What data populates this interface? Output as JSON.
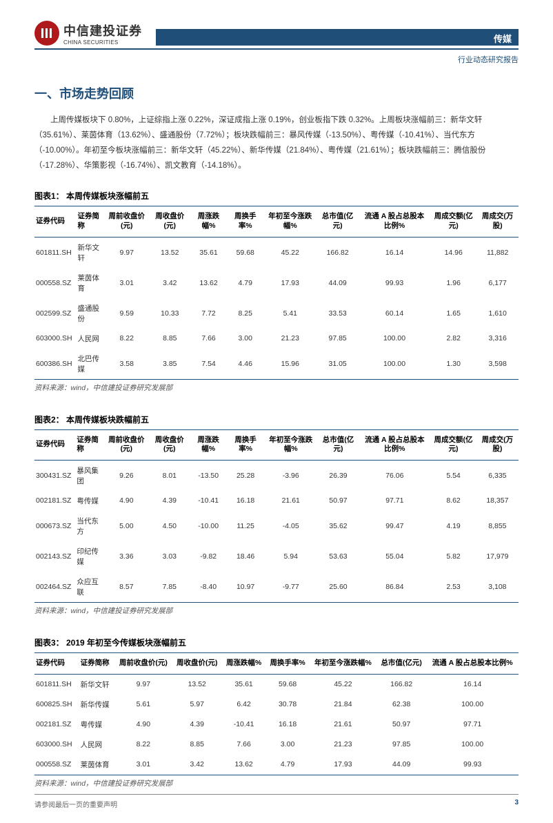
{
  "header": {
    "company_cn": "中信建投证券",
    "company_en": "CHINA SECURITIES",
    "logo_mark": "CITIC",
    "category": "传媒",
    "report_type": "行业动态研究报告"
  },
  "section1": {
    "title": "一、市场走势回顾",
    "intro": "上周传媒板块下 0.80%，上证综指上涨 0.22%，深证成指上涨 0.19%，创业板指下跌 0.32%。上周板块涨幅前三：新华文轩（35.61%）、莱茵体育（13.62%）、盛通股份（7.72%）；板块跌幅前三：暴风传媒（-13.50%）、粤传媒（-10.41%）、当代东方（-10.00%）。年初至今板块涨幅前三：新华文轩（45.22%）、新华传媒（21.84%）、粤传媒（21.61%）；板块跌幅前三：腾信股份（-17.28%）、华策影视（-16.74%）、凯文教育（-14.18%）。"
  },
  "colors": {
    "header_bar": "#1f4e79",
    "accent": "#1f4e79",
    "logo_red": "#b0191b",
    "text": "#333333"
  },
  "table1": {
    "title": "图表1：  本周传媒板块涨幅前五",
    "columns": [
      "证券代码",
      "证券简称",
      "周前收盘价(元)",
      "周收盘价(元)",
      "周涨跌幅%",
      "周换手率%",
      "年初至今涨跌幅%",
      "总市值(亿元)",
      "流通 A 股占总股本比例%",
      "周成交额(亿元)",
      "周成交(万股)"
    ],
    "rows": [
      [
        "601811.SH",
        "新华文轩",
        "9.97",
        "13.52",
        "35.61",
        "59.68",
        "45.22",
        "166.82",
        "16.14",
        "14.96",
        "11,882"
      ],
      [
        "000558.SZ",
        "莱茵体育",
        "3.01",
        "3.42",
        "13.62",
        "4.79",
        "17.93",
        "44.09",
        "99.93",
        "1.96",
        "6,177"
      ],
      [
        "002599.SZ",
        "盛通股份",
        "9.59",
        "10.33",
        "7.72",
        "8.25",
        "5.41",
        "33.53",
        "60.14",
        "1.65",
        "1,610"
      ],
      [
        "603000.SH",
        "人民网",
        "8.22",
        "8.85",
        "7.66",
        "3.00",
        "21.23",
        "97.85",
        "100.00",
        "2.82",
        "3,316"
      ],
      [
        "600386.SH",
        "北巴传媒",
        "3.58",
        "3.85",
        "7.54",
        "4.46",
        "15.96",
        "31.05",
        "100.00",
        "1.30",
        "3,598"
      ]
    ],
    "source": "资料来源：wind，中信建投证券研究发展部"
  },
  "table2": {
    "title": "图表2：  本周传媒板块跌幅前五",
    "columns": [
      "证券代码",
      "证券简称",
      "周前收盘价(元)",
      "周收盘价(元)",
      "周涨跌幅%",
      "周换手率%",
      "年初至今涨跌幅%",
      "总市值(亿元)",
      "流通 A 股占总股本比例%",
      "周成交额(亿元)",
      "周成交(万股)"
    ],
    "rows": [
      [
        "300431.SZ",
        "暴风集团",
        "9.26",
        "8.01",
        "-13.50",
        "25.28",
        "-3.96",
        "26.39",
        "76.06",
        "5.54",
        "6,335"
      ],
      [
        "002181.SZ",
        "粤传媒",
        "4.90",
        "4.39",
        "-10.41",
        "16.18",
        "21.61",
        "50.97",
        "97.71",
        "8.62",
        "18,357"
      ],
      [
        "000673.SZ",
        "当代东方",
        "5.00",
        "4.50",
        "-10.00",
        "11.25",
        "-4.05",
        "35.62",
        "99.47",
        "4.19",
        "8,855"
      ],
      [
        "002143.SZ",
        "印纪传媒",
        "3.36",
        "3.03",
        "-9.82",
        "18.46",
        "5.94",
        "53.63",
        "55.04",
        "5.82",
        "17,979"
      ],
      [
        "002464.SZ",
        "众应互联",
        "8.57",
        "7.85",
        "-8.40",
        "10.97",
        "-9.77",
        "25.60",
        "86.84",
        "2.53",
        "3,108"
      ]
    ],
    "source": "资料来源：wind，中信建投证券研究发展部"
  },
  "table3": {
    "title": "图表3：  2019 年初至今传媒板块涨幅前五",
    "columns": [
      "证券代码",
      "证券简称",
      "周前收盘价(元)",
      "周收盘价(元)",
      "周涨跌幅%",
      "周换手率%",
      "年初至今涨跌幅%",
      "总市值(亿元)",
      "流通 A 股占总股本比例%"
    ],
    "rows": [
      [
        "601811.SH",
        "新华文轩",
        "9.97",
        "13.52",
        "35.61",
        "59.68",
        "45.22",
        "166.82",
        "16.14"
      ],
      [
        "600825.SH",
        "新华传媒",
        "5.61",
        "5.97",
        "6.42",
        "30.78",
        "21.84",
        "62.38",
        "100.00"
      ],
      [
        "002181.SZ",
        "粤传媒",
        "4.90",
        "4.39",
        "-10.41",
        "16.18",
        "21.61",
        "50.97",
        "97.71"
      ],
      [
        "603000.SH",
        "人民网",
        "8.22",
        "8.85",
        "7.66",
        "3.00",
        "21.23",
        "97.85",
        "100.00"
      ],
      [
        "000558.SZ",
        "莱茵体育",
        "3.01",
        "3.42",
        "13.62",
        "4.79",
        "17.93",
        "44.09",
        "99.93"
      ]
    ],
    "source": "资料来源：wind，中信建投证券研究发展部"
  },
  "footer": {
    "disclaimer": "请参阅最后一页的重要声明",
    "page": "3"
  }
}
